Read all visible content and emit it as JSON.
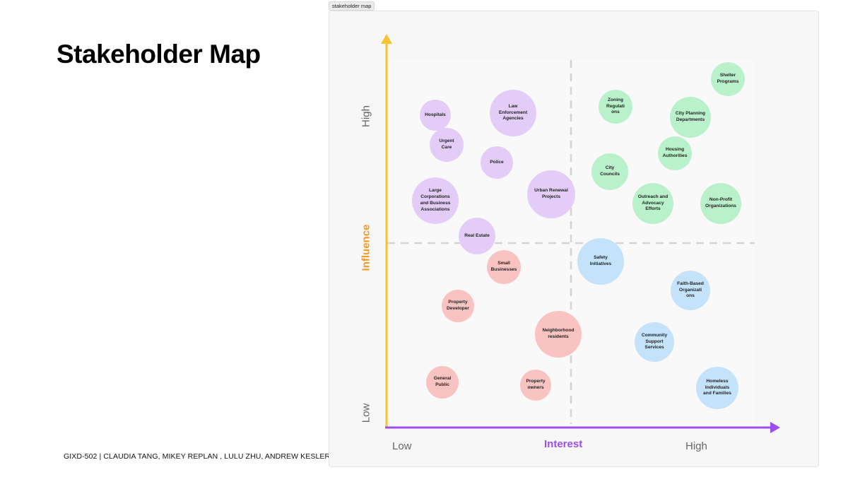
{
  "page": {
    "title": "Stakeholder Map",
    "credits": "GIXD-502 | CLAUDIA TANG, MIKEY REPLAN , LULU ZHU, ANDREW KESLER",
    "frame_label": "stakeholder map"
  },
  "axes": {
    "x_title": "Interest",
    "y_title": "Influence",
    "x_low": "Low",
    "x_high": "High",
    "y_low": "Low",
    "y_high": "High"
  },
  "colors": {
    "purple": "#e3cdf8",
    "green": "#b9f1cb",
    "blue": "#c5e2fb",
    "red": "#f9c3c2",
    "x_axis": "#9b4dee",
    "y_axis": "#f7c431"
  },
  "stakeholders": [
    {
      "id": "hospitals",
      "label": "Hospitals",
      "color": "purple"
    },
    {
      "id": "law-enforcement",
      "label": "Law\nEnforcement\nAgencies",
      "color": "purple"
    },
    {
      "id": "urgent-care",
      "label": "Urgent\nCare",
      "color": "purple"
    },
    {
      "id": "police",
      "label": "Police",
      "color": "purple"
    },
    {
      "id": "large-corporations",
      "label": "Large\nCorporations\nand Business\nAssociations",
      "color": "purple"
    },
    {
      "id": "urban-renewal",
      "label": "Urban Renewal\nProjects",
      "color": "purple"
    },
    {
      "id": "real-estate",
      "label": "Real Estate",
      "color": "purple"
    },
    {
      "id": "zoning-regulations",
      "label": "Zoning\nRegulati\nons",
      "color": "green"
    },
    {
      "id": "shelter-programs",
      "label": "Shelter\nPrograms",
      "color": "green"
    },
    {
      "id": "city-planning",
      "label": "City Planning\nDepartments",
      "color": "green"
    },
    {
      "id": "housing-authorities",
      "label": "Housing\nAuthorities",
      "color": "green"
    },
    {
      "id": "city-councils",
      "label": "City\nCouncils",
      "color": "green"
    },
    {
      "id": "outreach-advocacy",
      "label": "Outreach and\nAdvocacy\nEfforts",
      "color": "green"
    },
    {
      "id": "non-profit",
      "label": "Non-Profit\nOrganizations",
      "color": "green"
    },
    {
      "id": "safety-initiatives",
      "label": "Safety\nInitiatives",
      "color": "blue"
    },
    {
      "id": "faith-based",
      "label": "Faith-Based\nOrganizati\nons",
      "color": "blue"
    },
    {
      "id": "community-support",
      "label": "Community\nSupport\nServices",
      "color": "blue"
    },
    {
      "id": "homeless-individuals",
      "label": "Homeless\nIndividuals\nand Families",
      "color": "blue"
    },
    {
      "id": "small-businesses",
      "label": "Small\nBusinesses",
      "color": "red"
    },
    {
      "id": "property-developer",
      "label": "Property\nDeveloper",
      "color": "red"
    },
    {
      "id": "neighborhood-residents",
      "label": "Neighborhood\nresidents",
      "color": "red"
    },
    {
      "id": "general-public",
      "label": "General\nPublic",
      "color": "red"
    },
    {
      "id": "property-owners",
      "label": "Property\nowners",
      "color": "red"
    }
  ]
}
